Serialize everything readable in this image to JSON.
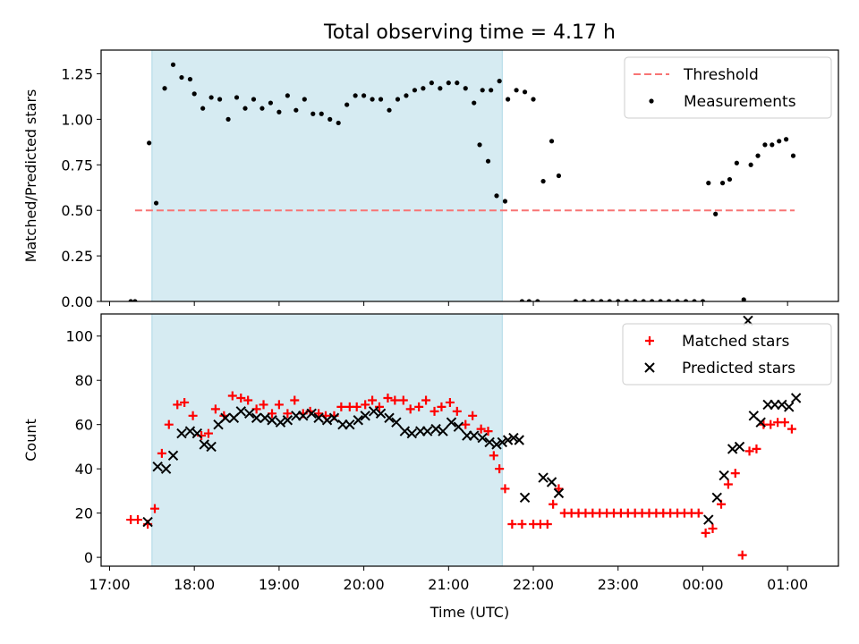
{
  "title": "Total observing time = 4.17 h",
  "chart_data": [
    {
      "type": "scatter",
      "ylabel": "Matched/Predicted stars",
      "xlabel": "",
      "ylim": [
        0,
        1.38
      ],
      "yticks": [
        0.0,
        0.25,
        0.5,
        0.75,
        1.0,
        1.25
      ],
      "ytick_labels": [
        "0.00",
        "0.25",
        "0.50",
        "0.75",
        "1.00",
        "1.25"
      ],
      "shaded_span": [
        "17:30",
        "21:38"
      ],
      "legend_position": "top-right",
      "threshold": {
        "name": "Threshold",
        "value": 0.5,
        "x_range": [
          "17:18",
          "01:05"
        ],
        "color": "#f87474"
      },
      "series": [
        {
          "name": "Measurements",
          "marker": "dot",
          "color": "#000000",
          "points": [
            [
              "17:15",
              0.0
            ],
            [
              "17:18",
              0.0
            ],
            [
              "17:28",
              0.87
            ],
            [
              "17:33",
              0.54
            ],
            [
              "17:39",
              1.17
            ],
            [
              "17:45",
              1.3
            ],
            [
              "17:51",
              1.23
            ],
            [
              "17:57",
              1.22
            ],
            [
              "18:00",
              1.14
            ],
            [
              "18:06",
              1.06
            ],
            [
              "18:12",
              1.12
            ],
            [
              "18:18",
              1.11
            ],
            [
              "18:24",
              1.0
            ],
            [
              "18:30",
              1.12
            ],
            [
              "18:36",
              1.06
            ],
            [
              "18:42",
              1.11
            ],
            [
              "18:48",
              1.06
            ],
            [
              "18:54",
              1.09
            ],
            [
              "19:00",
              1.04
            ],
            [
              "19:06",
              1.13
            ],
            [
              "19:12",
              1.05
            ],
            [
              "19:18",
              1.11
            ],
            [
              "19:24",
              1.03
            ],
            [
              "19:30",
              1.03
            ],
            [
              "19:36",
              1.0
            ],
            [
              "19:42",
              0.98
            ],
            [
              "19:48",
              1.08
            ],
            [
              "19:54",
              1.13
            ],
            [
              "20:00",
              1.13
            ],
            [
              "20:06",
              1.11
            ],
            [
              "20:12",
              1.11
            ],
            [
              "20:18",
              1.05
            ],
            [
              "20:24",
              1.11
            ],
            [
              "20:30",
              1.13
            ],
            [
              "20:36",
              1.16
            ],
            [
              "20:42",
              1.17
            ],
            [
              "20:48",
              1.2
            ],
            [
              "20:54",
              1.17
            ],
            [
              "21:00",
              1.2
            ],
            [
              "21:06",
              1.2
            ],
            [
              "21:12",
              1.17
            ],
            [
              "21:18",
              1.09
            ],
            [
              "21:24",
              1.16
            ],
            [
              "21:30",
              1.16
            ],
            [
              "21:36",
              1.21
            ],
            [
              "21:42",
              1.11
            ],
            [
              "21:48",
              1.16
            ],
            [
              "21:54",
              1.15
            ],
            [
              "22:00",
              1.11
            ],
            [
              "21:22",
              0.86
            ],
            [
              "21:28",
              0.77
            ],
            [
              "21:34",
              0.58
            ],
            [
              "21:40",
              0.55
            ],
            [
              "21:52",
              0.0
            ],
            [
              "21:57",
              0.0
            ],
            [
              "22:03",
              0.0
            ],
            [
              "22:07",
              0.66
            ],
            [
              "22:13",
              0.88
            ],
            [
              "22:18",
              0.69
            ],
            [
              "22:30",
              0.0
            ],
            [
              "22:36",
              0.0
            ],
            [
              "22:42",
              0.0
            ],
            [
              "22:48",
              0.0
            ],
            [
              "22:54",
              0.0
            ],
            [
              "23:00",
              0.0
            ],
            [
              "23:06",
              0.0
            ],
            [
              "23:12",
              0.0
            ],
            [
              "23:18",
              0.0
            ],
            [
              "23:24",
              0.0
            ],
            [
              "23:30",
              0.0
            ],
            [
              "23:36",
              0.0
            ],
            [
              "23:42",
              0.0
            ],
            [
              "23:48",
              0.0
            ],
            [
              "23:54",
              0.0
            ],
            [
              "00:00",
              0.0
            ],
            [
              "00:04",
              0.65
            ],
            [
              "00:09",
              0.48
            ],
            [
              "00:14",
              0.65
            ],
            [
              "00:19",
              0.67
            ],
            [
              "00:24",
              0.76
            ],
            [
              "00:29",
              0.01
            ],
            [
              "00:34",
              0.75
            ],
            [
              "00:39",
              0.8
            ],
            [
              "00:44",
              0.86
            ],
            [
              "00:49",
              0.86
            ],
            [
              "00:54",
              0.88
            ],
            [
              "00:59",
              0.89
            ],
            [
              "01:04",
              0.8
            ]
          ]
        }
      ]
    },
    {
      "type": "scatter",
      "ylabel": "Count",
      "xlabel": "Time (UTC)",
      "ylim": [
        -4,
        110
      ],
      "yticks": [
        0,
        20,
        40,
        60,
        80,
        100
      ],
      "ytick_labels": [
        "0",
        "20",
        "40",
        "60",
        "80",
        "100"
      ],
      "xticks": [
        "17:00",
        "18:00",
        "19:00",
        "20:00",
        "21:00",
        "22:00",
        "23:00",
        "00:00",
        "01:00"
      ],
      "shaded_span": [
        "17:30",
        "21:38"
      ],
      "legend_position": "top-right",
      "series": [
        {
          "name": "Matched stars",
          "marker": "plus",
          "color": "#ff0000",
          "points": [
            [
              "17:15",
              17
            ],
            [
              "17:20",
              17
            ],
            [
              "17:27",
              15
            ],
            [
              "17:32",
              22
            ],
            [
              "17:37",
              47
            ],
            [
              "17:42",
              60
            ],
            [
              "17:48",
              69
            ],
            [
              "17:53",
              70
            ],
            [
              "17:59",
              64
            ],
            [
              "18:05",
              55
            ],
            [
              "18:10",
              56
            ],
            [
              "18:15",
              67
            ],
            [
              "18:21",
              64
            ],
            [
              "18:27",
              73
            ],
            [
              "18:33",
              72
            ],
            [
              "18:38",
              71
            ],
            [
              "18:44",
              67
            ],
            [
              "18:49",
              69
            ],
            [
              "18:55",
              65
            ],
            [
              "19:00",
              69
            ],
            [
              "19:06",
              65
            ],
            [
              "19:11",
              71
            ],
            [
              "19:17",
              65
            ],
            [
              "19:22",
              66
            ],
            [
              "19:28",
              65
            ],
            [
              "19:33",
              64
            ],
            [
              "19:39",
              64
            ],
            [
              "19:44",
              68
            ],
            [
              "19:50",
              68
            ],
            [
              "19:55",
              68
            ],
            [
              "20:01",
              69
            ],
            [
              "20:06",
              71
            ],
            [
              "20:11",
              68
            ],
            [
              "20:17",
              72
            ],
            [
              "20:22",
              71
            ],
            [
              "20:28",
              71
            ],
            [
              "20:33",
              67
            ],
            [
              "20:39",
              68
            ],
            [
              "20:44",
              71
            ],
            [
              "20:50",
              66
            ],
            [
              "20:55",
              68
            ],
            [
              "21:01",
              70
            ],
            [
              "21:06",
              66
            ],
            [
              "21:12",
              60
            ],
            [
              "21:17",
              64
            ],
            [
              "21:23",
              58
            ],
            [
              "21:28",
              57
            ],
            [
              "21:32",
              46
            ],
            [
              "21:36",
              40
            ],
            [
              "21:40",
              31
            ],
            [
              "21:45",
              15
            ],
            [
              "21:52",
              15
            ],
            [
              "22:00",
              15
            ],
            [
              "22:05",
              15
            ],
            [
              "22:10",
              15
            ],
            [
              "22:14",
              24
            ],
            [
              "22:18",
              31
            ],
            [
              "22:22",
              20
            ],
            [
              "22:27",
              20
            ],
            [
              "22:32",
              20
            ],
            [
              "22:37",
              20
            ],
            [
              "22:42",
              20
            ],
            [
              "22:47",
              20
            ],
            [
              "22:52",
              20
            ],
            [
              "22:57",
              20
            ],
            [
              "23:02",
              20
            ],
            [
              "23:07",
              20
            ],
            [
              "23:12",
              20
            ],
            [
              "23:17",
              20
            ],
            [
              "23:22",
              20
            ],
            [
              "23:27",
              20
            ],
            [
              "23:32",
              20
            ],
            [
              "23:37",
              20
            ],
            [
              "23:42",
              20
            ],
            [
              "23:47",
              20
            ],
            [
              "23:52",
              20
            ],
            [
              "23:57",
              20
            ],
            [
              "00:02",
              11
            ],
            [
              "00:07",
              13
            ],
            [
              "00:13",
              24
            ],
            [
              "00:18",
              33
            ],
            [
              "00:23",
              38
            ],
            [
              "00:28",
              1
            ],
            [
              "00:33",
              48
            ],
            [
              "00:38",
              49
            ],
            [
              "00:43",
              60
            ],
            [
              "00:48",
              60
            ],
            [
              "00:53",
              61
            ],
            [
              "00:58",
              61
            ],
            [
              "01:03",
              58
            ]
          ]
        },
        {
          "name": "Predicted stars",
          "marker": "x",
          "color": "#000000",
          "points": [
            [
              "17:27",
              16
            ],
            [
              "17:34",
              41
            ],
            [
              "17:40",
              40
            ],
            [
              "17:45",
              46
            ],
            [
              "17:51",
              56
            ],
            [
              "17:57",
              57
            ],
            [
              "18:02",
              56
            ],
            [
              "18:07",
              51
            ],
            [
              "18:12",
              50
            ],
            [
              "18:17",
              60
            ],
            [
              "18:22",
              63
            ],
            [
              "18:28",
              63
            ],
            [
              "18:33",
              66
            ],
            [
              "18:39",
              65
            ],
            [
              "18:44",
              63
            ],
            [
              "18:50",
              63
            ],
            [
              "18:55",
              62
            ],
            [
              "19:01",
              61
            ],
            [
              "19:06",
              62
            ],
            [
              "19:12",
              64
            ],
            [
              "19:17",
              64
            ],
            [
              "19:23",
              65
            ],
            [
              "19:28",
              63
            ],
            [
              "19:34",
              62
            ],
            [
              "19:39",
              63
            ],
            [
              "19:45",
              60
            ],
            [
              "19:50",
              60
            ],
            [
              "19:56",
              62
            ],
            [
              "20:01",
              64
            ],
            [
              "20:07",
              66
            ],
            [
              "20:12",
              65
            ],
            [
              "20:18",
              63
            ],
            [
              "20:23",
              61
            ],
            [
              "20:29",
              57
            ],
            [
              "20:34",
              56
            ],
            [
              "20:40",
              57
            ],
            [
              "20:45",
              57
            ],
            [
              "20:51",
              58
            ],
            [
              "20:56",
              57
            ],
            [
              "21:02",
              61
            ],
            [
              "21:07",
              59
            ],
            [
              "21:13",
              55
            ],
            [
              "21:18",
              55
            ],
            [
              "21:24",
              54
            ],
            [
              "21:29",
              52
            ],
            [
              "21:34",
              51
            ],
            [
              "21:38",
              52
            ],
            [
              "21:42",
              53
            ],
            [
              "21:46",
              54
            ],
            [
              "21:50",
              53
            ],
            [
              "21:54",
              27
            ],
            [
              "22:07",
              36
            ],
            [
              "22:13",
              34
            ],
            [
              "22:18",
              29
            ],
            [
              "00:04",
              17
            ],
            [
              "00:10",
              27
            ],
            [
              "00:15",
              37
            ],
            [
              "00:21",
              49
            ],
            [
              "00:26",
              50
            ],
            [
              "00:32",
              107
            ],
            [
              "00:36",
              64
            ],
            [
              "00:41",
              61
            ],
            [
              "00:46",
              69
            ],
            [
              "00:51",
              69
            ],
            [
              "00:56",
              69
            ],
            [
              "01:01",
              68
            ],
            [
              "01:06",
              72
            ]
          ]
        }
      ]
    }
  ]
}
